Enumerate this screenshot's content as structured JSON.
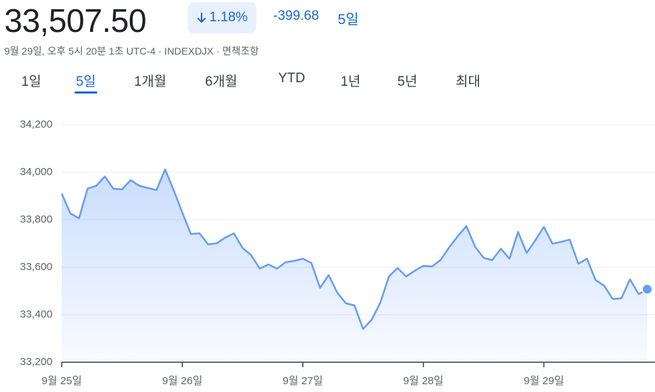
{
  "header": {
    "price": "33,507.50",
    "change_percent": "1.18%",
    "change": "-399.68",
    "period": "5일",
    "info": "9월 29일, 오후 5시 20분 1초 UTC-4 · INDEXDJX · 면책조항"
  },
  "tabs": [
    "1일",
    "5일",
    "1개월",
    "6개월",
    "YTD",
    "1년",
    "5년",
    "최대"
  ],
  "active_tab": 1,
  "chart_data": {
    "type": "line",
    "color": "#669df6",
    "grid": true,
    "values": [
      33910,
      33827,
      33806,
      33931,
      33943,
      33982,
      33931,
      33928,
      33967,
      33943,
      33934,
      33925,
      34012,
      33925,
      33830,
      33740,
      33743,
      33696,
      33701,
      33725,
      33743,
      33681,
      33651,
      33594,
      33612,
      33594,
      33621,
      33627,
      33636,
      33618,
      33513,
      33567,
      33493,
      33448,
      33439,
      33340,
      33379,
      33451,
      33561,
      33597,
      33561,
      33585,
      33606,
      33603,
      33630,
      33684,
      33731,
      33773,
      33687,
      33639,
      33630,
      33678,
      33636,
      33749,
      33660,
      33713,
      33770,
      33699,
      33707,
      33716,
      33615,
      33636,
      33546,
      33522,
      33466,
      33469,
      33549,
      33487,
      33507.5
    ],
    "xlim": [
      0,
      68
    ],
    "xticks": [
      {
        "value": 0,
        "label": "9월 25일"
      },
      {
        "value": 14,
        "label": "9월 26일"
      },
      {
        "value": 28,
        "label": "9월 27일"
      },
      {
        "value": 42,
        "label": "9월 28일"
      },
      {
        "value": 56,
        "label": "9월 29일"
      }
    ],
    "ylim": [
      33200,
      34200
    ],
    "yticks": [
      {
        "value": 33200,
        "label": "33,200"
      },
      {
        "value": 33400,
        "label": "33,400"
      },
      {
        "value": 33600,
        "label": "33,600"
      },
      {
        "value": 33800,
        "label": "33,800"
      },
      {
        "value": 34000,
        "label": "34,000"
      },
      {
        "value": 34200,
        "label": "34,200"
      }
    ]
  }
}
